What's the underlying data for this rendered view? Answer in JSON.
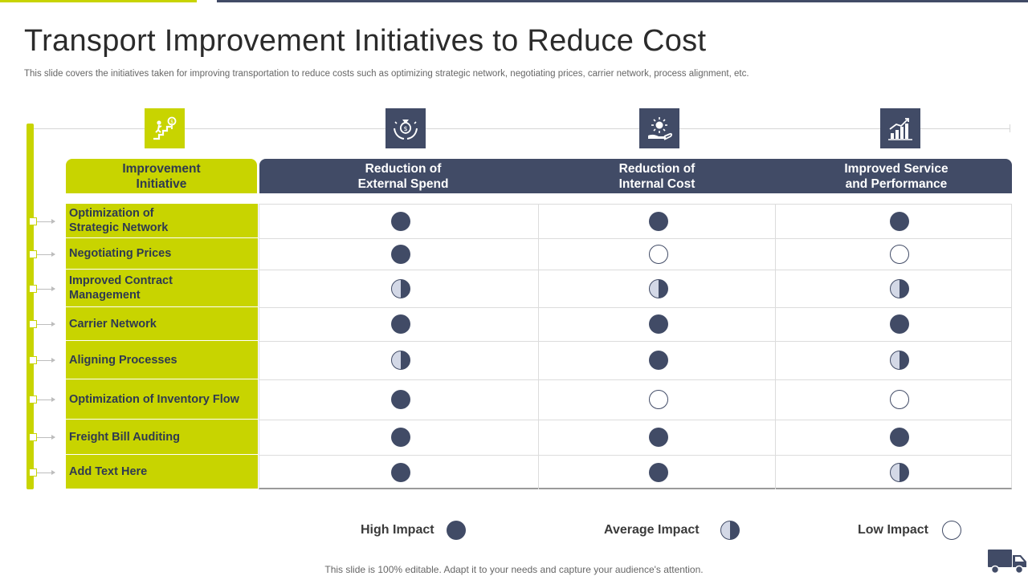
{
  "title": "Transport Improvement Initiatives to Reduce Cost",
  "subtitle": "This slide covers the initiatives taken for improving transportation to reduce costs such as optimizing strategic network, negotiating prices, carrier network, process alignment, etc.",
  "header": {
    "first_col": "Improvement\nInitiative",
    "columns": [
      {
        "label": "Reduction of\nExternal Spend",
        "icon": "money-bag-hands-icon"
      },
      {
        "label": "Reduction of\nInternal Cost",
        "icon": "coin-hand-icon"
      },
      {
        "label": "Improved Service\nand Performance",
        "icon": "growth-chart-icon"
      }
    ],
    "first_icon": "stairs-goal-icon"
  },
  "rows": [
    {
      "label": "Optimization of\nStrategic Network",
      "ratings": [
        "high",
        "high",
        "high"
      ]
    },
    {
      "label": "Negotiating Prices",
      "ratings": [
        "high",
        "low",
        "low"
      ]
    },
    {
      "label": "Improved Contract\nManagement",
      "ratings": [
        "average",
        "average",
        "average"
      ]
    },
    {
      "label": "Carrier Network",
      "ratings": [
        "high",
        "high",
        "high"
      ]
    },
    {
      "label": "Aligning Processes",
      "ratings": [
        "average",
        "high",
        "average"
      ]
    },
    {
      "label": "Optimization of Inventory Flow",
      "ratings": [
        "high",
        "low",
        "low"
      ]
    },
    {
      "label": "Freight Bill Auditing",
      "ratings": [
        "high",
        "high",
        "high"
      ]
    },
    {
      "label": "Add Text Here",
      "ratings": [
        "high",
        "high",
        "average"
      ]
    }
  ],
  "legend": {
    "high": "High Impact",
    "average": "Average Impact",
    "low": "Low Impact"
  },
  "footer": "This slide is 100% editable. Adapt it to your needs and capture your audience's attention.",
  "colors": {
    "accent_green": "#c8d400",
    "navy": "#414b66",
    "half_light": "#d3d8e6"
  }
}
